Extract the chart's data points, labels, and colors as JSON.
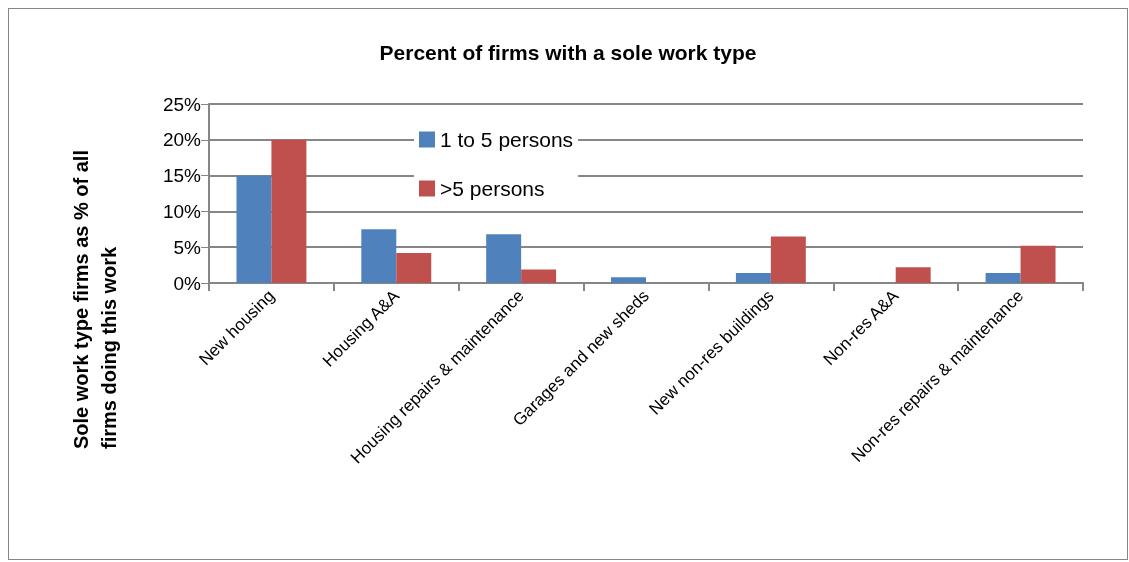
{
  "chart_data": {
    "type": "bar",
    "title": "Percent of firms with a sole work type",
    "ylabel": "Sole work type firms as % of all firms doing this work",
    "categories": [
      "New housing",
      "Housing A&A",
      "Housing repairs & maintenance",
      "Garages and new sheds",
      "New non-res buildings",
      "Non-res A&A",
      "Non-res repairs & maintenance"
    ],
    "series": [
      {
        "name": "1 to 5 persons",
        "color": "#4f81bd",
        "values": [
          15.0,
          7.5,
          6.8,
          0.8,
          1.4,
          0,
          1.4
        ]
      },
      {
        "name": ">5 persons",
        "color": "#c0504d",
        "values": [
          20.0,
          4.2,
          1.9,
          0,
          6.5,
          2.2,
          5.2
        ]
      }
    ],
    "ylim": [
      0,
      25
    ],
    "yticks": [
      {
        "value": 0,
        "label": "0%"
      },
      {
        "value": 5,
        "label": "5%"
      },
      {
        "value": 10,
        "label": "10%"
      },
      {
        "value": 15,
        "label": "15%"
      },
      {
        "value": 20,
        "label": "20%"
      },
      {
        "value": 25,
        "label": "25%"
      }
    ],
    "grid": "y",
    "legend": "top"
  }
}
